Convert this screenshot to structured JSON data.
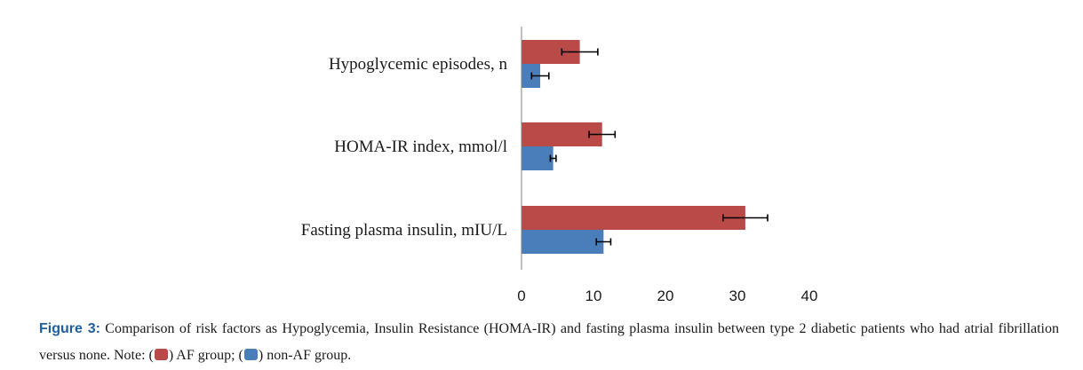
{
  "chart_data": {
    "type": "bar",
    "orientation": "horizontal",
    "categories": [
      "Hypoglycemic episodes, n",
      "HOMA-IR index, mmol/l",
      "Fasting plasma insulin, mIU/L"
    ],
    "series": [
      {
        "name": "AF group",
        "color": "#b94a48",
        "values": [
          8.1,
          11.2,
          31.1
        ],
        "errors": [
          2.5,
          1.8,
          3.1
        ]
      },
      {
        "name": "non-AF group",
        "color": "#4a7ebb",
        "values": [
          2.6,
          4.4,
          11.4
        ],
        "errors": [
          1.2,
          0.4,
          1.0
        ]
      }
    ],
    "x_ticks": [
      "0",
      "10",
      "20",
      "30",
      "40"
    ],
    "xlim": [
      0,
      40
    ],
    "grid": false,
    "legend": "none"
  },
  "caption": {
    "label": "Figure 3:",
    "text_1": " Comparison of risk factors as Hypoglycemia, Insulin Resistance (HOMA-IR) and fasting plasma insulin between type 2 diabetic patients who had atrial fibrillation versus none. Note: (",
    "text_2": ") AF group; (",
    "text_3": ") non-AF group.",
    "swatch_af_color": "#b94a48",
    "swatch_nonaf_color": "#4a7ebb"
  }
}
